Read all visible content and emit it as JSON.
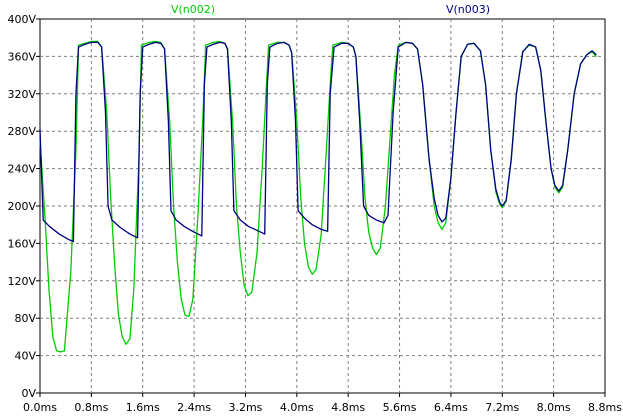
{
  "chart_data": {
    "type": "line",
    "title": "",
    "xlabel": "",
    "ylabel": "",
    "xlim": [
      0,
      8.8
    ],
    "ylim": [
      0,
      400
    ],
    "x_unit": "ms",
    "y_unit": "V",
    "grid": true,
    "legend": "top",
    "x_ticks": [
      0,
      0.8,
      1.6,
      2.4,
      3.2,
      4.0,
      4.8,
      5.6,
      6.4,
      7.2,
      8.0,
      8.8
    ],
    "x_tick_labels": [
      "0.0ms",
      "0.8ms",
      "1.6ms",
      "2.4ms",
      "3.2ms",
      "4.0ms",
      "4.8ms",
      "5.6ms",
      "6.4ms",
      "7.2ms",
      "8.0ms",
      "8.8ms"
    ],
    "y_ticks": [
      0,
      40,
      80,
      120,
      160,
      200,
      240,
      280,
      320,
      360,
      400
    ],
    "y_tick_labels": [
      "0V",
      "40V",
      "80V",
      "120V",
      "160V",
      "200V",
      "240V",
      "280V",
      "320V",
      "360V",
      "400V"
    ],
    "series": [
      {
        "name": "V(n002)",
        "color": "#00cc00",
        "points": [
          [
            0.0,
            270
          ],
          [
            0.08,
            185
          ],
          [
            0.14,
            110
          ],
          [
            0.2,
            60
          ],
          [
            0.26,
            45
          ],
          [
            0.32,
            44
          ],
          [
            0.38,
            45
          ],
          [
            0.48,
            130
          ],
          [
            0.56,
            260
          ],
          [
            0.6,
            372
          ],
          [
            0.7,
            374
          ],
          [
            0.8,
            376
          ],
          [
            0.9,
            376
          ],
          [
            0.96,
            370
          ],
          [
            1.04,
            300
          ],
          [
            1.1,
            210
          ],
          [
            1.16,
            140
          ],
          [
            1.22,
            85
          ],
          [
            1.28,
            60
          ],
          [
            1.34,
            52
          ],
          [
            1.4,
            58
          ],
          [
            1.46,
            110
          ],
          [
            1.54,
            250
          ],
          [
            1.58,
            372
          ],
          [
            1.7,
            375
          ],
          [
            1.8,
            376
          ],
          [
            1.88,
            375
          ],
          [
            1.94,
            368
          ],
          [
            2.02,
            290
          ],
          [
            2.08,
            200
          ],
          [
            2.14,
            140
          ],
          [
            2.2,
            100
          ],
          [
            2.26,
            83
          ],
          [
            2.32,
            82
          ],
          [
            2.38,
            100
          ],
          [
            2.46,
            190
          ],
          [
            2.54,
            300
          ],
          [
            2.58,
            372
          ],
          [
            2.7,
            375
          ],
          [
            2.8,
            376
          ],
          [
            2.88,
            374
          ],
          [
            2.92,
            368
          ],
          [
            3.0,
            290
          ],
          [
            3.06,
            200
          ],
          [
            3.12,
            150
          ],
          [
            3.18,
            115
          ],
          [
            3.24,
            104
          ],
          [
            3.3,
            108
          ],
          [
            3.38,
            150
          ],
          [
            3.46,
            240
          ],
          [
            3.52,
            320
          ],
          [
            3.56,
            372
          ],
          [
            3.7,
            375
          ],
          [
            3.8,
            375
          ],
          [
            3.88,
            372
          ],
          [
            3.92,
            364
          ],
          [
            4.0,
            290
          ],
          [
            4.06,
            210
          ],
          [
            4.12,
            160
          ],
          [
            4.18,
            135
          ],
          [
            4.24,
            127
          ],
          [
            4.3,
            132
          ],
          [
            4.38,
            170
          ],
          [
            4.46,
            260
          ],
          [
            4.52,
            330
          ],
          [
            4.56,
            372
          ],
          [
            4.7,
            375
          ],
          [
            4.8,
            374
          ],
          [
            4.88,
            370
          ],
          [
            4.92,
            360
          ],
          [
            5.0,
            280
          ],
          [
            5.06,
            210
          ],
          [
            5.12,
            172
          ],
          [
            5.18,
            155
          ],
          [
            5.24,
            148
          ],
          [
            5.3,
            155
          ],
          [
            5.38,
            200
          ],
          [
            5.46,
            280
          ],
          [
            5.52,
            340
          ],
          [
            5.58,
            372
          ],
          [
            5.7,
            375
          ],
          [
            5.8,
            374
          ],
          [
            5.88,
            368
          ],
          [
            5.96,
            330
          ],
          [
            6.06,
            250
          ],
          [
            6.14,
            200
          ],
          [
            6.2,
            182
          ],
          [
            6.26,
            175
          ],
          [
            6.32,
            182
          ],
          [
            6.4,
            230
          ],
          [
            6.48,
            300
          ],
          [
            6.56,
            360
          ],
          [
            6.66,
            373
          ],
          [
            6.76,
            374
          ],
          [
            6.86,
            366
          ],
          [
            6.94,
            330
          ],
          [
            7.02,
            260
          ],
          [
            7.1,
            215
          ],
          [
            7.16,
            202
          ],
          [
            7.2,
            198
          ],
          [
            7.26,
            205
          ],
          [
            7.34,
            250
          ],
          [
            7.42,
            320
          ],
          [
            7.52,
            365
          ],
          [
            7.62,
            372
          ],
          [
            7.72,
            370
          ],
          [
            7.8,
            345
          ],
          [
            7.88,
            290
          ],
          [
            7.96,
            240
          ],
          [
            8.02,
            220
          ],
          [
            8.08,
            214
          ],
          [
            8.14,
            220
          ],
          [
            8.22,
            260
          ],
          [
            8.32,
            320
          ],
          [
            8.42,
            352
          ],
          [
            8.52,
            362
          ],
          [
            8.6,
            365
          ],
          [
            8.66,
            360
          ]
        ]
      },
      {
        "name": "V(n003)",
        "color": "#000080",
        "points": [
          [
            0.0,
            282
          ],
          [
            0.05,
            185
          ],
          [
            0.15,
            178
          ],
          [
            0.3,
            170
          ],
          [
            0.45,
            164
          ],
          [
            0.52,
            162
          ],
          [
            0.56,
            320
          ],
          [
            0.6,
            370
          ],
          [
            0.7,
            373
          ],
          [
            0.8,
            375
          ],
          [
            0.9,
            375
          ],
          [
            0.96,
            370
          ],
          [
            1.02,
            300
          ],
          [
            1.06,
            200
          ],
          [
            1.12,
            185
          ],
          [
            1.25,
            177
          ],
          [
            1.4,
            170
          ],
          [
            1.52,
            166
          ],
          [
            1.56,
            320
          ],
          [
            1.6,
            370
          ],
          [
            1.7,
            373
          ],
          [
            1.8,
            375
          ],
          [
            1.88,
            374
          ],
          [
            1.94,
            368
          ],
          [
            2.0,
            290
          ],
          [
            2.04,
            195
          ],
          [
            2.12,
            185
          ],
          [
            2.25,
            178
          ],
          [
            2.4,
            172
          ],
          [
            2.52,
            168
          ],
          [
            2.56,
            330
          ],
          [
            2.6,
            370
          ],
          [
            2.7,
            373
          ],
          [
            2.8,
            375
          ],
          [
            2.88,
            374
          ],
          [
            2.92,
            368
          ],
          [
            2.98,
            290
          ],
          [
            3.02,
            195
          ],
          [
            3.12,
            185
          ],
          [
            3.25,
            178
          ],
          [
            3.38,
            174
          ],
          [
            3.5,
            170
          ],
          [
            3.54,
            330
          ],
          [
            3.58,
            370
          ],
          [
            3.7,
            374
          ],
          [
            3.8,
            375
          ],
          [
            3.88,
            372
          ],
          [
            3.92,
            364
          ],
          [
            3.98,
            290
          ],
          [
            4.02,
            195
          ],
          [
            4.12,
            187
          ],
          [
            4.24,
            180
          ],
          [
            4.38,
            175
          ],
          [
            4.48,
            173
          ],
          [
            4.52,
            320
          ],
          [
            4.58,
            370
          ],
          [
            4.7,
            374
          ],
          [
            4.8,
            374
          ],
          [
            4.88,
            370
          ],
          [
            4.92,
            360
          ],
          [
            4.98,
            290
          ],
          [
            5.04,
            200
          ],
          [
            5.12,
            190
          ],
          [
            5.24,
            185
          ],
          [
            5.36,
            182
          ],
          [
            5.42,
            190
          ],
          [
            5.5,
            300
          ],
          [
            5.58,
            370
          ],
          [
            5.7,
            375
          ],
          [
            5.8,
            374
          ],
          [
            5.88,
            368
          ],
          [
            5.96,
            330
          ],
          [
            6.06,
            250
          ],
          [
            6.14,
            208
          ],
          [
            6.2,
            190
          ],
          [
            6.26,
            183
          ],
          [
            6.32,
            187
          ],
          [
            6.4,
            230
          ],
          [
            6.48,
            300
          ],
          [
            6.56,
            360
          ],
          [
            6.66,
            373
          ],
          [
            6.76,
            374
          ],
          [
            6.86,
            366
          ],
          [
            6.94,
            330
          ],
          [
            7.02,
            260
          ],
          [
            7.1,
            218
          ],
          [
            7.16,
            204
          ],
          [
            7.2,
            200
          ],
          [
            7.26,
            206
          ],
          [
            7.34,
            250
          ],
          [
            7.42,
            320
          ],
          [
            7.52,
            365
          ],
          [
            7.62,
            373
          ],
          [
            7.72,
            370
          ],
          [
            7.8,
            345
          ],
          [
            7.88,
            290
          ],
          [
            7.96,
            240
          ],
          [
            8.02,
            222
          ],
          [
            8.08,
            216
          ],
          [
            8.14,
            222
          ],
          [
            8.22,
            260
          ],
          [
            8.32,
            320
          ],
          [
            8.42,
            352
          ],
          [
            8.52,
            362
          ],
          [
            8.6,
            366
          ],
          [
            8.66,
            362
          ]
        ]
      }
    ]
  }
}
